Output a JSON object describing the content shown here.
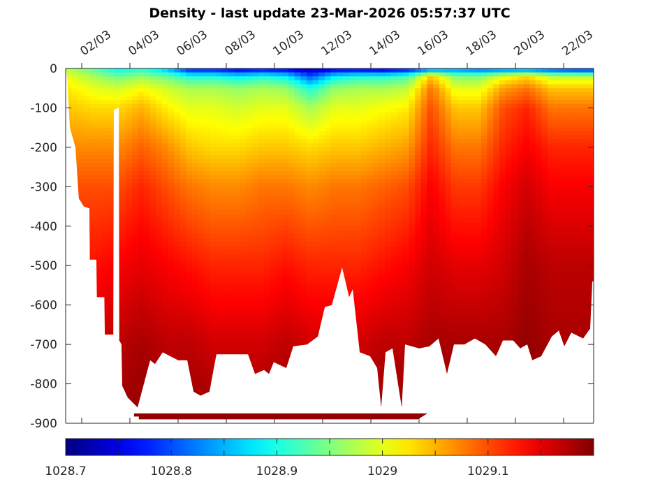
{
  "chart_data": {
    "type": "heatmap",
    "title": "Density - last update 23-Mar-2026 05:57:37 UTC",
    "xlabel": "",
    "ylabel": "",
    "x_unit": "day of March 2026",
    "xlim": [
      1.33,
      23.25
    ],
    "ylim": [
      -900,
      0
    ],
    "x_ticks": [
      2,
      4,
      6,
      8,
      10,
      12,
      14,
      16,
      18,
      20,
      22
    ],
    "x_tick_labels": [
      "02/03",
      "04/03",
      "06/03",
      "08/03",
      "10/03",
      "12/03",
      "14/03",
      "16/03",
      "18/03",
      "20/03",
      "22/03"
    ],
    "y_ticks": [
      0,
      -100,
      -200,
      -300,
      -400,
      -500,
      -600,
      -700,
      -800,
      -900
    ],
    "y_tick_labels": [
      "0",
      "-100",
      "-200",
      "-300",
      "-400",
      "-500",
      "-600",
      "-700",
      "-800",
      "-900"
    ],
    "colormap": "jet",
    "clim": [
      1028.7,
      1029.2
    ],
    "colorbar": {
      "location": "bottom",
      "ticks": [
        1028.7,
        1028.75,
        1028.8,
        1028.85,
        1028.9,
        1028.95,
        1029,
        1029.05,
        1029.1,
        1029.15
      ],
      "labels": [
        {
          "value": 1028.7,
          "text": "1028.7"
        },
        {
          "value": 1028.8,
          "text": "1028.8"
        },
        {
          "value": 1028.9,
          "text": "1028.9"
        },
        {
          "value": 1029.0,
          "text": "1029"
        },
        {
          "value": 1029.1,
          "text": "1029.1"
        }
      ]
    },
    "days": [
      1.5,
      2.5,
      3.5,
      4.5,
      5.5,
      6.5,
      7.5,
      8.5,
      9.5,
      10.5,
      11.5,
      12.5,
      13.5,
      14.5,
      15.5,
      16.5,
      17.5,
      18.5,
      19.5,
      20.5,
      21.5,
      22.5
    ],
    "depths": [
      0,
      20,
      50,
      100,
      200,
      300,
      500,
      700,
      900
    ],
    "density": [
      [
        1028.97,
        1029.0,
        1029.02,
        1029.04,
        1029.07,
        1029.1,
        1029.13,
        1029.16,
        1029.18
      ],
      [
        1028.93,
        1028.97,
        1029.0,
        1029.03,
        1029.07,
        1029.1,
        1029.13,
        1029.16,
        1029.18
      ],
      [
        1028.88,
        1028.94,
        1028.99,
        1029.03,
        1029.07,
        1029.1,
        1029.14,
        1029.17,
        1029.19
      ],
      [
        1028.9,
        1028.96,
        1029.01,
        1029.05,
        1029.09,
        1029.12,
        1029.15,
        1029.18,
        1029.19
      ],
      [
        1028.85,
        1028.94,
        1028.99,
        1029.02,
        1029.07,
        1029.1,
        1029.14,
        1029.17,
        1029.19
      ],
      [
        1028.76,
        1028.9,
        1028.97,
        1029.0,
        1029.04,
        1029.08,
        1029.13,
        1029.17,
        1029.19
      ],
      [
        1028.76,
        1028.9,
        1028.97,
        1029.0,
        1029.03,
        1029.07,
        1029.12,
        1029.16,
        1029.19
      ],
      [
        1028.74,
        1028.88,
        1028.96,
        1028.99,
        1029.03,
        1029.07,
        1029.12,
        1029.16,
        1029.19
      ],
      [
        1028.75,
        1028.9,
        1028.97,
        1029.0,
        1029.04,
        1029.08,
        1029.12,
        1029.16,
        1029.19
      ],
      [
        1028.74,
        1028.88,
        1028.96,
        1029.0,
        1029.04,
        1029.08,
        1029.13,
        1029.17,
        1029.19
      ],
      [
        1028.72,
        1028.8,
        1028.9,
        1028.97,
        1029.03,
        1029.07,
        1029.12,
        1029.16,
        1029.19
      ],
      [
        1028.74,
        1028.88,
        1028.96,
        1029.0,
        1029.04,
        1029.08,
        1029.12,
        1029.16,
        1029.19
      ],
      [
        1028.74,
        1028.9,
        1028.97,
        1029.0,
        1029.04,
        1029.08,
        1029.12,
        1029.16,
        1029.19
      ],
      [
        1028.73,
        1028.9,
        1028.97,
        1029.01,
        1029.05,
        1029.09,
        1029.13,
        1029.17,
        1029.19
      ],
      [
        1028.75,
        1028.92,
        1028.98,
        1029.02,
        1029.06,
        1029.1,
        1029.14,
        1029.17,
        1029.19
      ],
      [
        1028.8,
        1029.04,
        1029.08,
        1029.1,
        1029.12,
        1029.14,
        1029.16,
        1029.18,
        1029.19
      ],
      [
        1028.82,
        1028.95,
        1029.0,
        1029.04,
        1029.08,
        1029.11,
        1029.15,
        1029.18,
        1029.19
      ],
      [
        1028.8,
        1028.95,
        1029.0,
        1029.04,
        1029.08,
        1029.11,
        1029.15,
        1029.18,
        1029.19
      ],
      [
        1028.8,
        1029.0,
        1029.06,
        1029.1,
        1029.12,
        1029.14,
        1029.16,
        1029.18,
        1029.19
      ],
      [
        1028.8,
        1029.03,
        1029.08,
        1029.12,
        1029.14,
        1029.16,
        1029.18,
        1029.19,
        1029.19
      ],
      [
        1028.78,
        1028.98,
        1029.04,
        1029.08,
        1029.12,
        1029.14,
        1029.17,
        1029.18,
        1029.19
      ],
      [
        1028.76,
        1028.98,
        1029.04,
        1029.08,
        1029.12,
        1029.14,
        1029.17,
        1029.18,
        1029.19
      ]
    ],
    "max_profile_depth": [
      [
        1.33,
        0
      ],
      [
        1.39,
        20
      ],
      [
        1.51,
        150
      ],
      [
        1.74,
        200
      ],
      [
        1.88,
        330
      ],
      [
        2.09,
        350
      ],
      [
        2.32,
        355
      ],
      [
        2.34,
        485
      ],
      [
        2.61,
        485
      ],
      [
        2.63,
        580
      ],
      [
        2.94,
        580
      ],
      [
        2.96,
        675
      ],
      [
        3.31,
        675
      ],
      [
        3.33,
        105
      ],
      [
        3.54,
        100
      ],
      [
        3.56,
        690
      ],
      [
        3.65,
        700
      ],
      [
        3.68,
        805
      ],
      [
        3.91,
        835
      ],
      [
        4.32,
        860
      ],
      [
        4.84,
        740
      ],
      [
        5.04,
        750
      ],
      [
        5.36,
        720
      ],
      [
        6.0,
        740
      ],
      [
        6.38,
        740
      ],
      [
        6.64,
        820
      ],
      [
        6.93,
        830
      ],
      [
        7.3,
        820
      ],
      [
        7.59,
        725
      ],
      [
        8.9,
        725
      ],
      [
        9.19,
        775
      ],
      [
        9.57,
        765
      ],
      [
        9.77,
        775
      ],
      [
        9.97,
        745
      ],
      [
        10.49,
        760
      ],
      [
        10.78,
        705
      ],
      [
        11.36,
        700
      ],
      [
        11.8,
        680
      ],
      [
        12.09,
        605
      ],
      [
        12.38,
        600
      ],
      [
        12.81,
        505
      ],
      [
        13.1,
        580
      ],
      [
        13.25,
        560
      ],
      [
        13.54,
        720
      ],
      [
        13.97,
        730
      ],
      [
        14.26,
        760
      ],
      [
        14.43,
        860
      ],
      [
        14.61,
        720
      ],
      [
        14.9,
        710
      ],
      [
        15.28,
        860
      ],
      [
        15.42,
        700
      ],
      [
        16.0,
        710
      ],
      [
        16.43,
        705
      ],
      [
        16.81,
        685
      ],
      [
        17.16,
        775
      ],
      [
        17.45,
        700
      ],
      [
        17.88,
        700
      ],
      [
        18.32,
        685
      ],
      [
        18.75,
        700
      ],
      [
        19.19,
        730
      ],
      [
        19.48,
        690
      ],
      [
        19.91,
        690
      ],
      [
        20.2,
        710
      ],
      [
        20.49,
        700
      ],
      [
        20.7,
        740
      ],
      [
        21.07,
        730
      ],
      [
        21.51,
        680
      ],
      [
        21.8,
        665
      ],
      [
        22.03,
        705
      ],
      [
        22.32,
        670
      ],
      [
        22.81,
        685
      ],
      [
        23.1,
        660
      ],
      [
        23.19,
        540
      ],
      [
        23.25,
        540
      ],
      [
        23.25,
        0
      ]
    ],
    "bottom_band": {
      "day_start": 4.17,
      "day_end": 16.35,
      "depth_top": 875,
      "depth_bottom": 890,
      "density": 1029.19
    },
    "grid": false,
    "legend": "colorbar-bottom"
  }
}
